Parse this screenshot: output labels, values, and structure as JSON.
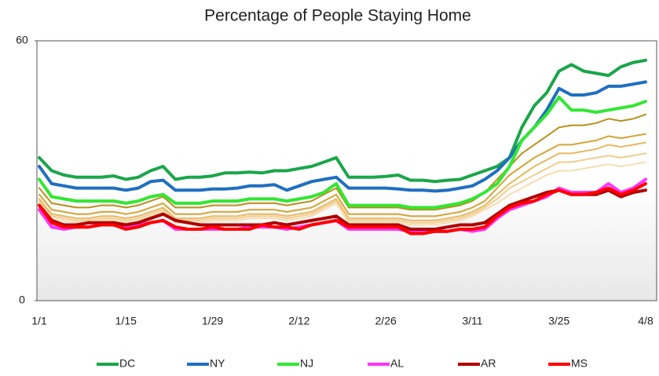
{
  "chart_data": {
    "type": "line",
    "title": "Percentage of People Staying Home",
    "categories": [
      "1/1",
      null,
      null,
      null,
      null,
      null,
      null,
      "1/15",
      null,
      null,
      null,
      null,
      null,
      null,
      "1/29",
      null,
      null,
      null,
      null,
      null,
      null,
      "2/12",
      null,
      null,
      null,
      null,
      null,
      null,
      "2/26",
      null,
      null,
      null,
      null,
      null,
      null,
      "3/11",
      null,
      null,
      null,
      null,
      null,
      null,
      "3/25",
      null,
      null,
      null,
      null,
      null,
      null,
      "4/8"
    ],
    "ylim": [
      0,
      60
    ],
    "yticks": [
      0,
      60
    ],
    "grid": false,
    "legend": "bottom",
    "series": [
      {
        "color": "#b8901a",
        "values": [
          26,
          22.5,
          22,
          21.5,
          21.5,
          22,
          22,
          21.5,
          22,
          23,
          24,
          21.5,
          21.5,
          21.5,
          22,
          22,
          22,
          22.5,
          22.5,
          22.5,
          22,
          22.5,
          23,
          24.5,
          26,
          21.5,
          21.5,
          21.5,
          21.5,
          21.5,
          21,
          21,
          21,
          21.5,
          22,
          23,
          25,
          28,
          31,
          34,
          36,
          38,
          40,
          40.5,
          40.5,
          41,
          42,
          41.5,
          42,
          43
        ]
      },
      {
        "color": "#d4a536",
        "values": [
          24.5,
          21,
          20.5,
          20,
          20,
          20.5,
          20.5,
          20,
          20.5,
          21.5,
          22.5,
          20,
          20,
          20,
          20.5,
          20.5,
          20.5,
          21,
          21,
          21,
          20.5,
          21,
          21.5,
          23,
          24.5,
          20,
          20,
          20,
          20,
          20,
          19.5,
          19.5,
          19.5,
          20,
          20.5,
          21.5,
          23,
          26,
          29,
          31,
          33,
          34.5,
          36,
          36,
          36.5,
          37,
          38,
          37.5,
          38,
          38.5
        ]
      },
      {
        "color": "#e8b860",
        "values": [
          23.5,
          20,
          19.5,
          19,
          19,
          19.5,
          19.5,
          19,
          19.5,
          20.5,
          21.5,
          19,
          19,
          19,
          19.5,
          19.5,
          19.5,
          20,
          20,
          20,
          19.5,
          20,
          20.5,
          22,
          23.5,
          19,
          19,
          19,
          19,
          19,
          18.5,
          18.5,
          18.5,
          19,
          19.5,
          20.5,
          22,
          24.5,
          27,
          29,
          31,
          32.5,
          34,
          34,
          34.5,
          35,
          36,
          35.5,
          36,
          36.5
        ]
      },
      {
        "color": "#f2cc8a",
        "values": [
          23,
          19.5,
          19,
          18.5,
          18.5,
          19,
          19,
          18.5,
          19,
          20,
          21,
          18.5,
          18.5,
          18.5,
          19,
          19,
          19,
          19.5,
          19.5,
          19.5,
          19,
          19.5,
          20,
          21.5,
          23,
          18.5,
          18.5,
          18.5,
          18.5,
          18.5,
          18,
          18,
          18,
          18.5,
          19,
          20,
          21.5,
          23.5,
          26,
          27.5,
          29,
          30.5,
          32,
          32,
          32.5,
          33,
          33.5,
          33,
          33.5,
          34
        ]
      },
      {
        "color": "#f8dcb0",
        "values": [
          22.5,
          19,
          18.5,
          18,
          18,
          18.5,
          18.5,
          18,
          18.5,
          19.5,
          20.5,
          18,
          18,
          18,
          18.5,
          18.5,
          18.5,
          19,
          19,
          19,
          18.5,
          19,
          19.5,
          21,
          22.5,
          18,
          18,
          18,
          18,
          18,
          17.5,
          17.5,
          17.5,
          18,
          18.5,
          19.5,
          21,
          22.5,
          24.5,
          26,
          27.5,
          29,
          30,
          30,
          30.5,
          31,
          31.5,
          31,
          31.5,
          32
        ]
      },
      {
        "name": "DC",
        "color": "#1aa64a",
        "values": [
          33,
          30,
          29,
          28.5,
          28.5,
          28.5,
          28.8,
          28,
          28.5,
          30,
          31,
          28,
          28.5,
          28.5,
          28.8,
          29.5,
          29.5,
          29.7,
          29.5,
          30,
          30,
          30.5,
          31,
          32,
          33,
          28.5,
          28.5,
          28.5,
          28.7,
          29,
          27.8,
          27.8,
          27.5,
          27.8,
          28,
          29,
          30,
          31,
          33,
          40,
          45,
          48,
          53,
          54.5,
          53,
          52.5,
          52,
          54,
          55,
          55.5
        ]
      },
      {
        "name": "NY",
        "color": "#1f6fbf",
        "values": [
          31,
          27,
          26.5,
          26,
          26,
          26,
          26,
          25.5,
          26,
          27.5,
          27.8,
          25.5,
          25.5,
          25.5,
          25.8,
          25.8,
          26,
          26.5,
          26.5,
          26.8,
          25.5,
          26.5,
          27.5,
          28,
          28.5,
          26,
          26,
          26,
          26,
          25.8,
          25.5,
          25.5,
          25.3,
          25.5,
          26,
          26.5,
          28,
          30,
          33,
          37,
          40,
          44,
          49,
          47.5,
          47.5,
          48,
          49.5,
          49.5,
          50,
          50.5
        ]
      },
      {
        "name": "NJ",
        "color": "#33e633",
        "values": [
          28,
          24,
          23.5,
          23,
          23,
          23,
          23,
          22.5,
          23,
          24,
          24.5,
          22.5,
          22.5,
          22.5,
          23,
          23,
          23,
          23.5,
          23.5,
          23.5,
          23,
          23.5,
          24,
          25,
          27,
          22,
          22,
          22,
          22,
          22,
          21.5,
          21.5,
          21.5,
          22,
          22.5,
          23.5,
          25,
          27,
          31,
          37,
          40,
          43,
          47,
          44,
          44,
          43.5,
          44,
          44.5,
          45,
          46
        ]
      },
      {
        "name": "AL",
        "color": "#ff33ff",
        "values": [
          21,
          17,
          16.5,
          17,
          17,
          17.5,
          17.5,
          17,
          17.5,
          18,
          18.5,
          16.5,
          16.5,
          16.5,
          16.5,
          16.5,
          16.5,
          17,
          17,
          17,
          16.5,
          17,
          17.5,
          18,
          18.5,
          16.5,
          16.5,
          16.5,
          16.5,
          16.5,
          16,
          16,
          16,
          16,
          16.5,
          16,
          16.5,
          19,
          21,
          22,
          23,
          24,
          26,
          25,
          25,
          25,
          27,
          25,
          26,
          28
        ]
      },
      {
        "name": "AR",
        "color": "#b00000",
        "values": [
          22,
          18.5,
          17.5,
          17.5,
          18,
          18,
          18,
          17.5,
          18,
          19,
          20,
          18.5,
          18,
          17.5,
          17.5,
          17.5,
          17.5,
          17.5,
          17.5,
          18,
          17.5,
          18,
          18.5,
          19,
          19.5,
          17.5,
          17.5,
          17.5,
          17.5,
          17.5,
          16.5,
          16.5,
          16.5,
          17,
          17.5,
          17.5,
          18,
          20,
          22,
          23,
          24,
          25,
          25.5,
          24.5,
          24.5,
          24.5,
          25.5,
          24,
          25,
          25.5
        ]
      },
      {
        "name": "MS",
        "color": "#ff0000",
        "values": [
          22,
          18,
          17,
          17,
          17,
          17.5,
          17.5,
          16.5,
          17,
          18,
          18.5,
          17,
          16.5,
          16.5,
          17,
          16.5,
          16.5,
          16.5,
          17.5,
          17,
          17,
          16.5,
          17.5,
          18,
          18.5,
          17,
          17,
          17,
          17,
          17,
          15.5,
          15.5,
          16,
          16,
          16.5,
          16.5,
          17,
          19.5,
          21.5,
          22.5,
          23,
          24.5,
          25.5,
          24.5,
          24.5,
          25,
          26,
          24.5,
          25.5,
          27
        ]
      }
    ]
  }
}
